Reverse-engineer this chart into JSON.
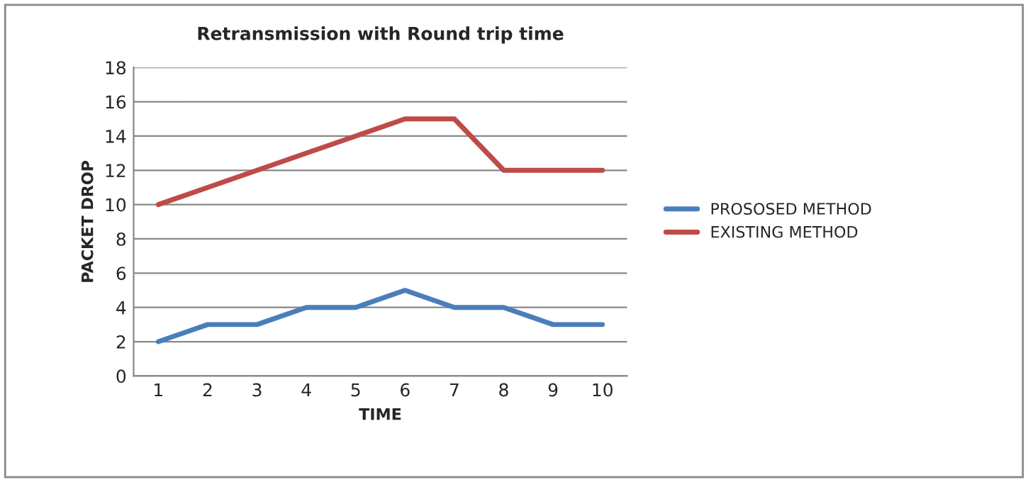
{
  "chart_data": {
    "type": "line",
    "title": "Retransmission with Round trip time",
    "xlabel": "TIME",
    "ylabel": "PACKET DROP",
    "categories": [
      "1",
      "2",
      "3",
      "4",
      "5",
      "6",
      "7",
      "8",
      "9",
      "10"
    ],
    "series": [
      {
        "name": "PROSOSED METHOD",
        "color": "#4a7ebb",
        "values": [
          2,
          3,
          3,
          4,
          4,
          5,
          4,
          4,
          3,
          3
        ]
      },
      {
        "name": "EXISTING METHOD",
        "color": "#be4b48",
        "values": [
          10,
          11,
          12,
          13,
          14,
          15,
          15,
          12,
          12,
          12
        ]
      }
    ],
    "ylim": [
      0,
      18
    ],
    "yticks": [
      0,
      2,
      4,
      6,
      8,
      10,
      12,
      14,
      16,
      18
    ],
    "grid": "y",
    "legend": "right",
    "marker": "none",
    "line_style": "solid"
  }
}
